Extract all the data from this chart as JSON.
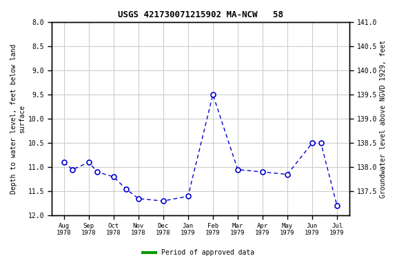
{
  "title": "USGS 421730071215902 MA-NCW   58",
  "ylabel_left": "Depth to water level, feet below land\nsurface",
  "ylabel_right": "Groundwater level above NGVD 1929, feet",
  "x_labels": [
    "Aug\n1978",
    "Sep\n1978",
    "Oct\n1978",
    "Nov\n1978",
    "Dec\n1978",
    "Jan\n1979",
    "Feb\n1979",
    "Mar\n1979",
    "Apr\n1979",
    "May\n1979",
    "Jun\n1979",
    "Jul\n1979"
  ],
  "ylim_left": [
    8.0,
    12.0
  ],
  "ylim_right_top": 141.0,
  "ylim_right_bottom": 137.0,
  "left_ticks": [
    8.0,
    8.5,
    9.0,
    9.5,
    10.0,
    10.5,
    11.0,
    11.5,
    12.0
  ],
  "right_ticks": [
    141.0,
    140.5,
    140.0,
    139.5,
    139.0,
    138.5,
    138.0,
    137.5
  ],
  "data_x": [
    0.0,
    0.35,
    1.0,
    1.35,
    2.0,
    2.5,
    3.0,
    4.0,
    5.0,
    6.0,
    7.0,
    8.0,
    9.0,
    10.0,
    10.35,
    11.0
  ],
  "data_y": [
    10.9,
    11.05,
    10.9,
    11.1,
    11.2,
    11.45,
    11.65,
    11.7,
    11.6,
    9.5,
    11.05,
    11.1,
    11.15,
    10.5,
    10.5,
    11.8
  ],
  "line_color": "#0000cc",
  "marker_face": "#ffffff",
  "marker_edge": "#0000cc",
  "grid_color": "#c8c8c8",
  "legend_label": "Period of approved data",
  "legend_color": "#009900",
  "bg_color": "#ffffff",
  "xlim": [
    -0.5,
    11.5
  ]
}
